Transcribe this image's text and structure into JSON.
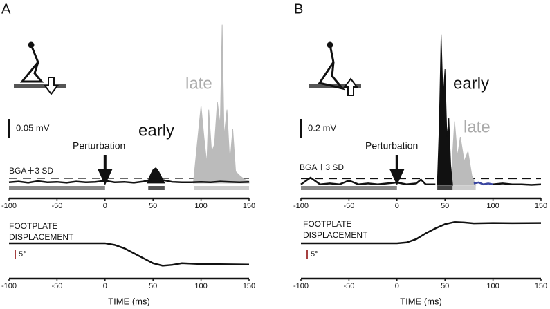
{
  "chart_data": [
    {
      "type": "line",
      "panel": "A",
      "xlim": [
        -100,
        150
      ],
      "xticks": [
        -100,
        -50,
        0,
        50,
        100,
        150
      ],
      "x_label": "TIME (ms)",
      "emg": {
        "ylim": [
          -0.036,
          0.42
        ],
        "threshold": 0.0125,
        "scale_bar": {
          "value": 0.05,
          "label": "0.05 mV"
        },
        "series": [
          {
            "color": "#bbbbbb",
            "fill": true,
            "x": [
              92,
              96,
              100,
              103,
              106,
              108,
              111,
              114,
              117,
              120,
              122,
              124,
              127,
              130,
              133,
              136,
              140,
              145,
              150
            ],
            "values": [
              0,
              0.1,
              0.2,
              0.12,
              0.05,
              0.19,
              0.08,
              0.1,
              0.21,
              0.15,
              0.41,
              0.12,
              0.19,
              0.05,
              0.14,
              0.03,
              0.02,
              0.01,
              0.005
            ]
          },
          {
            "color": "#111111",
            "fill": true,
            "x": [
              44,
              47,
              50,
              53,
              56,
              59,
              62
            ],
            "values": [
              0,
              0.02,
              0.035,
              0.04,
              0.03,
              0.015,
              0
            ]
          },
          {
            "color": "#111111",
            "fill": false,
            "x": [
              -100,
              -90,
              -80,
              -70,
              -60,
              -50,
              -40,
              -30,
              -20,
              -10,
              0,
              10,
              20,
              30,
              40,
              50,
              60,
              70,
              80,
              90,
              100,
              110,
              120,
              130,
              140,
              150
            ],
            "values": [
              0.002,
              0.004,
              0.001,
              0.005,
              0.002,
              0.003,
              0.001,
              0.004,
              0.002,
              0.003,
              0.006,
              0.002,
              0.003,
              0.001,
              0.004,
              0.01,
              0.008,
              0.003,
              0.002,
              0.002,
              0.003,
              0.002,
              0.004,
              0.003,
              0.002,
              0.003
            ]
          }
        ],
        "windows": [
          {
            "x": [
              -100,
              0
            ],
            "color": "#888888"
          },
          {
            "x": [
              45,
              62
            ],
            "color": "#555555"
          },
          {
            "x": [
              93,
              150
            ],
            "color": "#cccccc"
          }
        ]
      },
      "footplate": {
        "ylim": [
          -20,
          13.3
        ],
        "color": "#111111",
        "scale_bar": {
          "value": 5,
          "label": "5°"
        },
        "x": [
          -100,
          -50,
          0,
          10,
          20,
          30,
          40,
          50,
          60,
          70,
          80,
          100,
          120,
          150
        ],
        "values": [
          0,
          0,
          0,
          -1,
          -3,
          -6,
          -9,
          -12,
          -13.5,
          -13,
          -12,
          -12.5,
          -12.6,
          -12.8
        ]
      },
      "labels": {
        "early": "early",
        "late": "late",
        "perturbation": "Perturbation",
        "threshold": "BGA＋3 SD",
        "footplate": [
          "FOOTPLATE",
          "DISPLACEMENT"
        ]
      }
    },
    {
      "type": "line",
      "panel": "B",
      "xlim": [
        -100,
        150
      ],
      "xticks": [
        -100,
        -50,
        0,
        50,
        100,
        150
      ],
      "x_label": "TIME (ms)",
      "emg": {
        "ylim": [
          -0.12,
          1.7
        ],
        "threshold": 0.07,
        "scale_bar": {
          "value": 0.2,
          "label": "0.2 mV"
        },
        "series": [
          {
            "color": "#bbbbbb",
            "fill": true,
            "x": [
              56,
              60,
              63,
              66,
              70,
              74,
              78,
              82
            ],
            "values": [
              0,
              0.66,
              0.3,
              0.5,
              0.25,
              0.35,
              0.1,
              0
            ]
          },
          {
            "color": "#111111",
            "fill": true,
            "x": [
              42,
              44,
              46,
              48,
              50,
              52,
              54,
              56,
              58
            ],
            "values": [
              0,
              0.6,
              1.56,
              0.9,
              1.2,
              0.5,
              0.7,
              0.2,
              0
            ]
          },
          {
            "color": "#111111",
            "fill": false,
            "x": [
              -100,
              -90,
              -80,
              -70,
              -60,
              -50,
              -40,
              -30,
              -20,
              -10,
              0,
              10,
              20,
              25,
              30,
              40
            ],
            "values": [
              0.01,
              0.08,
              0.01,
              0.02,
              0.01,
              0.05,
              0.01,
              0.02,
              0.01,
              0.02,
              0.03,
              0.01,
              0.02,
              0.06,
              0.01,
              0.01
            ]
          },
          {
            "color": "#3a46a0",
            "fill": false,
            "x": [
              80,
              85,
              90,
              95,
              100
            ],
            "values": [
              0.02,
              0.03,
              0.01,
              0.02,
              0.01
            ]
          },
          {
            "color": "#111111",
            "fill": false,
            "x": [
              100,
              110,
              120,
              130,
              140,
              150
            ],
            "values": [
              0.01,
              0.02,
              0.01,
              0.01,
              0.005,
              0.01
            ]
          }
        ],
        "windows": [
          {
            "x": [
              -100,
              0
            ],
            "color": "#888888"
          },
          {
            "x": [
              42,
              58
            ],
            "color": "#444444"
          },
          {
            "x": [
              58,
              82
            ],
            "color": "#cccccc"
          }
        ]
      },
      "footplate": {
        "ylim": [
          -20,
          13.3
        ],
        "color": "#111111",
        "scale_bar": {
          "value": 5,
          "label": "5°"
        },
        "x": [
          -100,
          -50,
          0,
          10,
          20,
          30,
          40,
          50,
          60,
          70,
          80,
          100,
          120,
          150
        ],
        "values": [
          0,
          0,
          0,
          0.5,
          2.5,
          6,
          9,
          11.5,
          12.8,
          12.5,
          12,
          12.2,
          12.1,
          12.2
        ]
      },
      "labels": {
        "early": "early",
        "late": "late",
        "perturbation": "Perturbation",
        "threshold": "BGA＋3 SD",
        "footplate": [
          "FOOTPLATE",
          "DISPLACEMENT"
        ]
      }
    }
  ]
}
